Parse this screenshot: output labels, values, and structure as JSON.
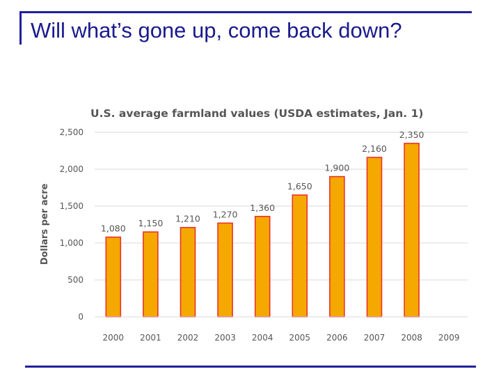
{
  "slide": {
    "title": "Will what’s gone up, come back down?",
    "accent_color": "#1f1f9e",
    "title_color": "#1a1a8c"
  },
  "chart_data": {
    "type": "bar",
    "title": "U.S. average farmland values (USDA estimates, Jan. 1)",
    "xlabel": "",
    "ylabel": "Dollars per acre",
    "categories": [
      "2000",
      "2001",
      "2002",
      "2003",
      "2004",
      "2005",
      "2006",
      "2007",
      "2008",
      "2009"
    ],
    "values": [
      1080,
      1150,
      1210,
      1270,
      1360,
      1650,
      1900,
      2160,
      2350,
      null
    ],
    "data_labels": [
      "1,080",
      "1,150",
      "1,210",
      "1,270",
      "1,360",
      "1,650",
      "1,900",
      "2,160",
      "2,350",
      ""
    ],
    "yticks": [
      0,
      500,
      1000,
      1500,
      2000,
      2500
    ],
    "ytick_labels": [
      "0",
      "500",
      "1,000",
      "1,500",
      "2,000",
      "2,500"
    ],
    "ylim": [
      0,
      2500
    ],
    "grid": true,
    "legend": "none",
    "bar_fill": "#f5a800",
    "bar_stroke": "#e8332a"
  }
}
